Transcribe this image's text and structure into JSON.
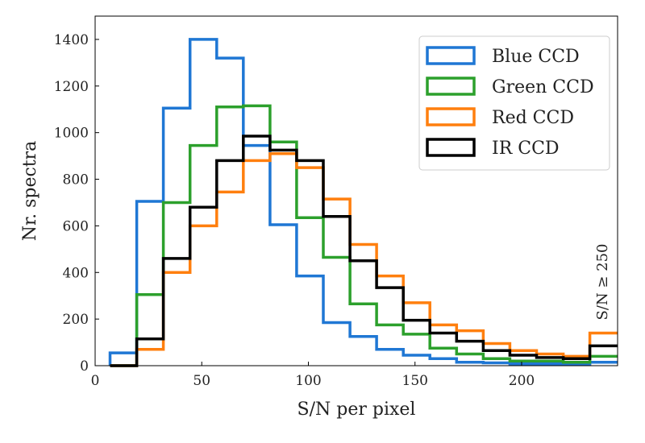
{
  "chart_data": {
    "type": "histogram-step",
    "title": "",
    "xlabel": "S/N per pixel",
    "ylabel": "Nr. spectra",
    "xlim": [
      0,
      245
    ],
    "ylim": [
      0,
      1500
    ],
    "xticks": [
      0,
      50,
      100,
      150,
      200
    ],
    "yticks": [
      0,
      200,
      400,
      600,
      800,
      1000,
      1200,
      1400
    ],
    "bin_edges": [
      7,
      19.5,
      32,
      44.5,
      57,
      69.5,
      82,
      94.5,
      107,
      119.5,
      132,
      144.5,
      157,
      169.5,
      182,
      194.5,
      207,
      219.5,
      232,
      245
    ],
    "annotation": "S/N ≥ 250",
    "legend_position": "top-right",
    "series": [
      {
        "name": "Blue CCD",
        "color": "#1f77d4",
        "values": [
          55,
          705,
          1105,
          1400,
          1320,
          945,
          605,
          385,
          185,
          125,
          70,
          45,
          30,
          15,
          12,
          8,
          8,
          5,
          15
        ]
      },
      {
        "name": "Green CCD",
        "color": "#2ca02c",
        "values": [
          0,
          305,
          700,
          945,
          1110,
          1115,
          960,
          635,
          465,
          265,
          175,
          135,
          75,
          50,
          30,
          20,
          20,
          15,
          40
        ]
      },
      {
        "name": "Red CCD",
        "color": "#ff7f0e",
        "values": [
          0,
          70,
          400,
          600,
          745,
          880,
          910,
          850,
          715,
          520,
          385,
          270,
          175,
          150,
          95,
          65,
          50,
          40,
          140
        ]
      },
      {
        "name": "IR CCD",
        "color": "#000000",
        "values": [
          0,
          115,
          460,
          680,
          880,
          985,
          925,
          880,
          640,
          450,
          335,
          195,
          140,
          105,
          65,
          45,
          35,
          30,
          85
        ]
      }
    ]
  }
}
